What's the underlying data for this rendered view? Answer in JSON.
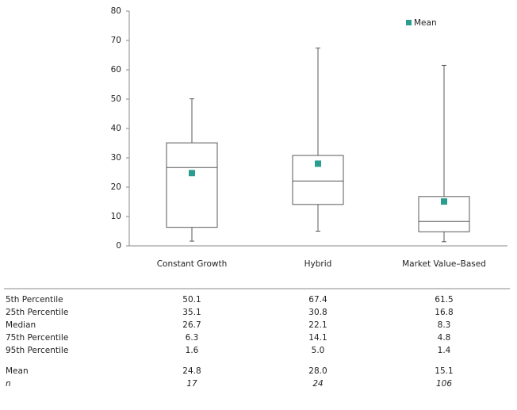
{
  "chart_data": {
    "type": "box",
    "categories": [
      "Constant Growth",
      "Hybrid",
      "Market Value–Based"
    ],
    "ylim": [
      0,
      80
    ],
    "yticks": [
      0,
      10,
      20,
      30,
      40,
      50,
      60,
      70,
      80
    ],
    "box_color": "#595959",
    "mean_color": "#2a9d8f",
    "legend": "upper right",
    "stats": [
      {
        "label": "5th Percentile",
        "values": [
          50.1,
          67.4,
          61.5
        ]
      },
      {
        "label": "25th Percentile",
        "values": [
          35.1,
          30.8,
          16.8
        ]
      },
      {
        "label": "Median",
        "values": [
          26.7,
          22.1,
          8.3
        ]
      },
      {
        "label": "75th Percentile",
        "values": [
          6.3,
          14.1,
          4.8
        ]
      },
      {
        "label": "95th Percentile",
        "values": [
          1.6,
          5,
          1.4
        ],
        "value_labels": [
          "1.6",
          "5.0",
          "1.4"
        ]
      }
    ],
    "mean": {
      "label": "Mean",
      "values": [
        24.8,
        28,
        15.1
      ],
      "value_labels": [
        "24.8",
        "28.0",
        "15.1"
      ]
    },
    "n": {
      "label": "n",
      "values": [
        17,
        24,
        106
      ]
    }
  }
}
